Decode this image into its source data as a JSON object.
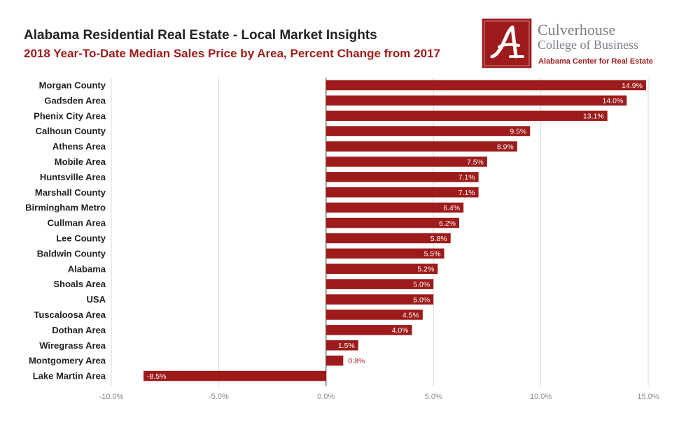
{
  "header": {
    "title": "Alabama Residential Real Estate - Local Market Insights",
    "subtitle": "2018 Year-To-Date Median Sales Price by Area, Percent Change from 2017"
  },
  "logo": {
    "line1": "Culverhouse",
    "line2": "College of Business",
    "line3": "Alabama Center for Real Estate",
    "icon": "script-a-icon"
  },
  "colors": {
    "bar": "#9e1b1b",
    "subtitle": "#9e1b1b",
    "grid": "#d9d9d9",
    "tick_label": "#8a8a8a",
    "category_label": "#222222"
  },
  "chart_data": {
    "type": "bar",
    "orientation": "horizontal",
    "categories": [
      "Morgan County",
      "Gadsden Area",
      "Phenix City Area",
      "Calhoun County",
      "Athens Area",
      "Mobile Area",
      "Huntsville Area",
      "Marshall County",
      "Birmingham Metro",
      "Cullman Area",
      "Lee County",
      "Baldwin County",
      "Alabama",
      "Shoals Area",
      "USA",
      "Tuscaloosa Area",
      "Dothan Area",
      "Wiregrass Area",
      "Montgomery Area",
      "Lake Martin Area"
    ],
    "values": [
      14.9,
      14.0,
      13.1,
      9.5,
      8.9,
      7.5,
      7.1,
      7.1,
      6.4,
      6.2,
      5.8,
      5.5,
      5.2,
      5.0,
      5.0,
      4.5,
      4.0,
      1.5,
      0.8,
      -8.5
    ],
    "data_labels": [
      "14.9%",
      "14.0%",
      "13.1%",
      "9.5%",
      "8.9%",
      "7.5%",
      "7.1%",
      "7.1%",
      "6.4%",
      "6.2%",
      "5.8%",
      "5.5%",
      "5.2%",
      "5.0%",
      "5.0%",
      "4.5%",
      "4.0%",
      "1.5%",
      "0.8%",
      "-8.5%"
    ],
    "xlim": [
      -10,
      15
    ],
    "ticks": [
      -10,
      -5,
      0,
      5,
      10,
      15
    ],
    "tick_labels": [
      "-10.0%",
      "-5.0%",
      "0.0%",
      "5.0%",
      "10.0%",
      "15.0%"
    ],
    "grid": true,
    "xlabel": "",
    "ylabel": ""
  }
}
